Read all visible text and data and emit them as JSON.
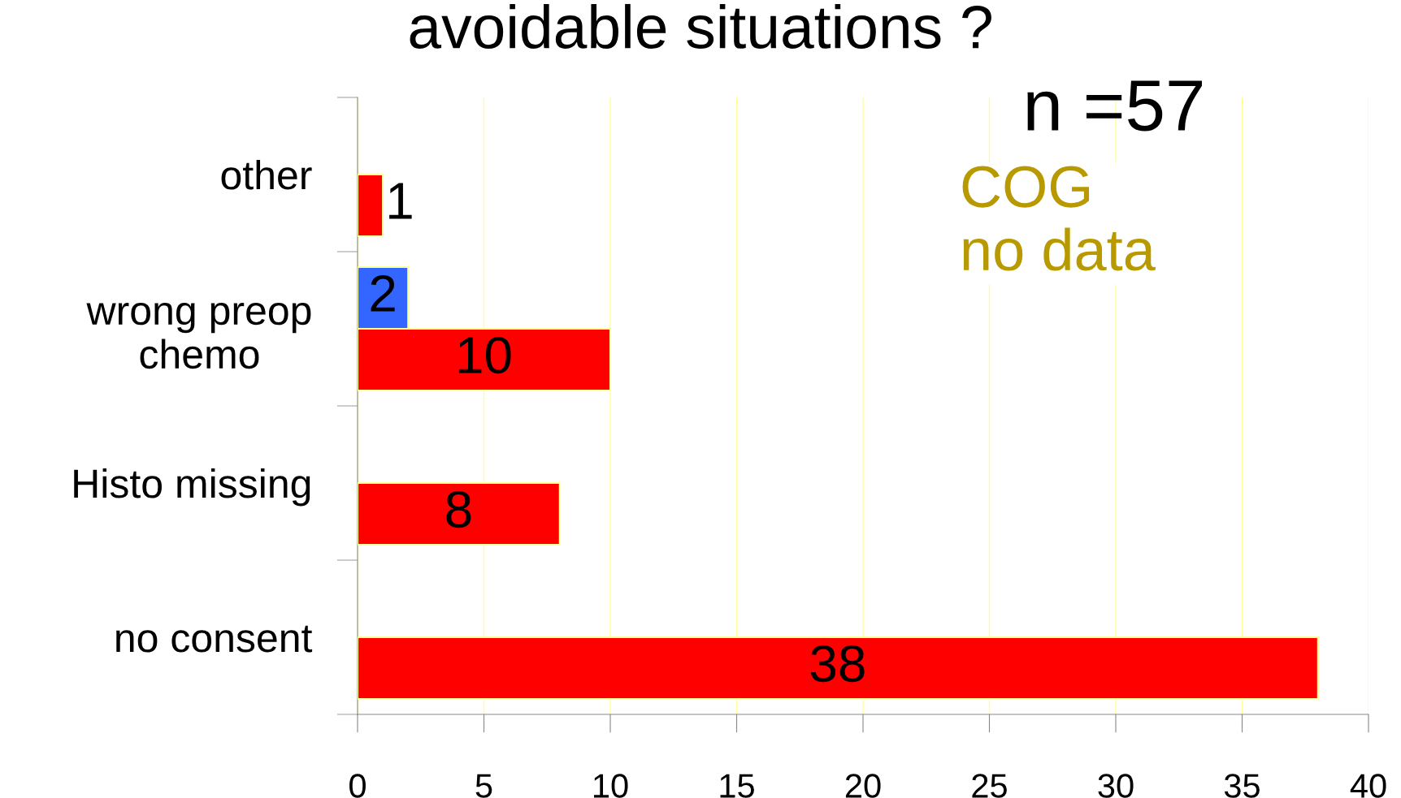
{
  "chart_data": {
    "type": "bar",
    "orientation": "horizontal",
    "title": "avoidable situations ?",
    "categories": [
      "other",
      "wrong preop\nchemo",
      "Histo missing",
      "no consent"
    ],
    "series": [
      {
        "color": "#ff0000",
        "values": [
          1,
          10,
          8,
          38
        ]
      },
      {
        "color": "#3366ff",
        "values": [
          null,
          2,
          null,
          null
        ]
      }
    ],
    "xlim": [
      0,
      40
    ],
    "xticks": [
      0,
      5,
      10,
      15,
      20,
      25,
      30,
      35,
      40
    ],
    "grid": "x",
    "legend": false,
    "data_labels": true,
    "annotations": [
      "n =57",
      "COG\nno data"
    ]
  }
}
